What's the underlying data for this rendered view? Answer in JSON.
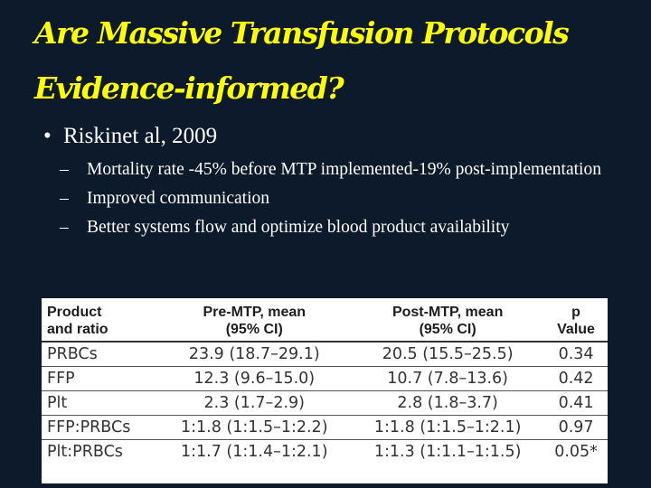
{
  "slide": {
    "title_line1": "Are Massive Transfusion Protocols",
    "title_line2": "Evidence-informed?",
    "bullet": "Riskinet al, 2009",
    "bullet_marker": "•",
    "sub_marker": "–",
    "sub_bullets": [
      "Mortality rate -45% before MTP implemented-19% post-implementation",
      "Improved communication",
      "Better systems flow and optimize blood product availability"
    ]
  },
  "table": {
    "headers": [
      [
        "Product",
        "and ratio"
      ],
      [
        "Pre-MTP, mean",
        "(95% CI)"
      ],
      [
        "Post-MTP, mean",
        "(95% CI)"
      ],
      [
        "p",
        "Value"
      ]
    ],
    "rows": [
      [
        "PRBCs",
        "23.9 (18.7–29.1)",
        "20.5 (15.5–25.5)",
        "0.34"
      ],
      [
        "FFP",
        "12.3 (9.6–15.0)",
        "10.7 (7.8–13.6)",
        "0.42"
      ],
      [
        "Plt",
        "2.3 (1.7–2.9)",
        "2.8 (1.8–3.7)",
        "0.41"
      ],
      [
        "FFP:PRBCs",
        "1:1.8 (1:1.5–1:2.2)",
        "1:1.8 (1:1.5–1:2.1)",
        "0.97"
      ],
      [
        "Plt:PRBCs",
        "1:1.7 (1:1.4–1:2.1)",
        "1:1.3 (1:1.1–1:1.5)",
        "0.05*"
      ]
    ]
  }
}
